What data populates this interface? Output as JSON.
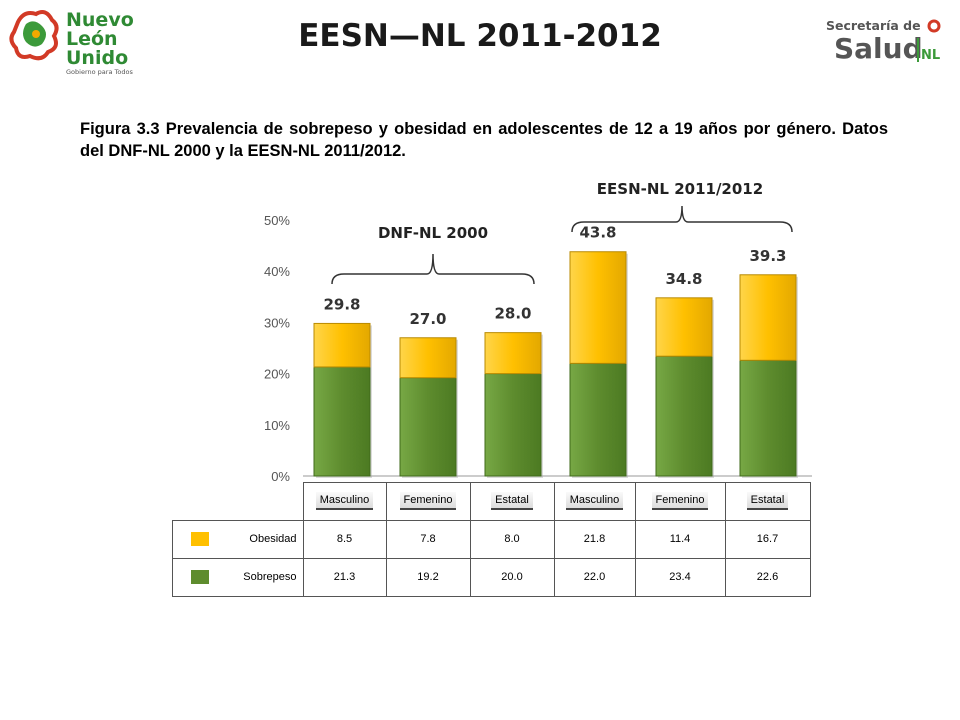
{
  "header": {
    "title": "EESN—NL 2011-2012",
    "logo_left": {
      "line1": "Nuevo",
      "line2": "León",
      "line3": "Unido",
      "tagline": "Gobierno para Todos"
    },
    "logo_right": {
      "line1": "Secretaría de",
      "line2": "Salud",
      "suffix": "NL"
    }
  },
  "caption": "Figura 3.3 Prevalencia de sobrepeso y obesidad en adolescentes de 12 a 19 años por género. Datos del DNF-NL 2000 y la EESN-NL 2011/2012.",
  "colors": {
    "obesidad": "#FFC000",
    "sobrepeso": "#5E8C2E",
    "obesidad_dark": "#B98A00",
    "sobrepeso_dark": "#3F6A1A"
  },
  "chart_data": {
    "type": "bar",
    "stacked": true,
    "categories": [
      "Masculino",
      "Femenino",
      "Estatal",
      "Masculino",
      "Femenino",
      "Estatal"
    ],
    "groups": [
      {
        "label": "DNF-NL 2000",
        "categories": [
          0,
          1,
          2
        ]
      },
      {
        "label": "EESN-NL 2011/2012",
        "categories": [
          3,
          4,
          5
        ]
      }
    ],
    "series": [
      {
        "name": "Sobrepeso",
        "values": [
          21.3,
          19.2,
          20.0,
          22.0,
          23.4,
          22.6
        ]
      },
      {
        "name": "Obesidad",
        "values": [
          8.5,
          7.8,
          8.0,
          21.8,
          11.4,
          16.7
        ]
      }
    ],
    "totals": [
      "29.8",
      "27.0",
      "28.0",
      "43.8",
      "34.8",
      "39.3"
    ],
    "ylim": [
      0,
      50
    ],
    "yticks": [
      "0%",
      "10%",
      "20%",
      "30%",
      "40%",
      "50%"
    ],
    "legend": "data-table-below",
    "grid": false
  },
  "table": {
    "rows": [
      {
        "label": "Obesidad",
        "color": "#FFC000",
        "values": [
          "8.5",
          "7.8",
          "8.0",
          "21.8",
          "11.4",
          "16.7"
        ]
      },
      {
        "label": "Sobrepeso",
        "color": "#5E8C2E",
        "values": [
          "21.3",
          "19.2",
          "20.0",
          "22.0",
          "23.4",
          "22.6"
        ]
      }
    ]
  }
}
